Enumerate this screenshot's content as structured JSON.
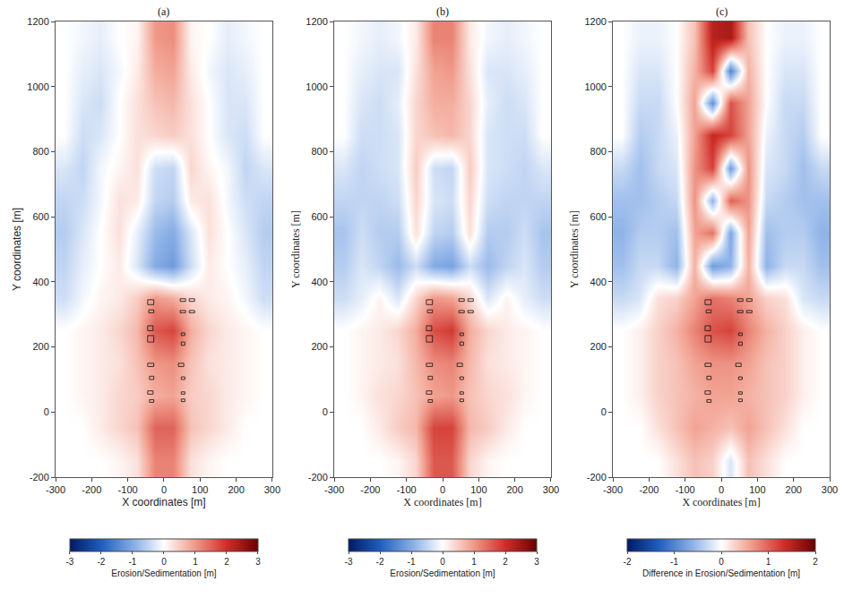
{
  "chart_data": [
    {
      "type": "heatmap",
      "title": "(a)",
      "xlabel": "X coordinates [m]",
      "ylabel": "Y coordinates [m]",
      "xlim": [
        -300,
        300
      ],
      "xticks": [
        -300,
        -200,
        -100,
        0,
        100,
        200,
        300
      ],
      "ylim": [
        -200,
        1200
      ],
      "yticks": [
        -200,
        0,
        200,
        400,
        600,
        800,
        1000,
        1200
      ],
      "x": [
        -275,
        -225,
        -175,
        -125,
        -75,
        -25,
        25,
        75,
        125,
        175,
        225,
        275
      ],
      "y": [
        -150,
        -50,
        50,
        150,
        250,
        350,
        450,
        550,
        650,
        750,
        850,
        950,
        1050,
        1150
      ],
      "z": [
        [
          0,
          0,
          0,
          0.1,
          0.3,
          1.2,
          1.2,
          0.3,
          0.1,
          0,
          0,
          0
        ],
        [
          0,
          0,
          0.2,
          0.4,
          0.6,
          1.5,
          1.5,
          0.6,
          0.4,
          0.2,
          0,
          0
        ],
        [
          0,
          0.1,
          0.2,
          0.4,
          0.5,
          0.8,
          0.9,
          0.5,
          0.4,
          0.2,
          0.1,
          0
        ],
        [
          0,
          0.1,
          0.2,
          0.3,
          0.6,
          1.0,
          1.1,
          0.6,
          0.3,
          0.2,
          0.1,
          0
        ],
        [
          0,
          0.1,
          0.2,
          0.4,
          0.7,
          1.6,
          1.8,
          0.8,
          0.4,
          0.2,
          0.1,
          0
        ],
        [
          -0.4,
          -0.1,
          0.1,
          0.2,
          0.5,
          1.0,
          0.8,
          0.4,
          0.2,
          0.1,
          -0.1,
          -0.4
        ],
        [
          -0.5,
          -0.2,
          0,
          0.2,
          -0.3,
          -1.0,
          -1.2,
          -0.4,
          0.2,
          0,
          -0.2,
          -0.5
        ],
        [
          -0.6,
          -0.3,
          0,
          0.3,
          -0.2,
          -0.8,
          -1.0,
          -0.3,
          0.3,
          0,
          -0.3,
          -0.6
        ],
        [
          -0.5,
          -0.4,
          -0.1,
          0.3,
          0.2,
          -0.5,
          -0.6,
          0.2,
          0.3,
          -0.1,
          -0.4,
          -0.5
        ],
        [
          -0.3,
          -0.5,
          -0.1,
          0.1,
          0.3,
          -0.4,
          -0.5,
          0.4,
          0.1,
          -0.1,
          -0.5,
          -0.3
        ],
        [
          0,
          -0.4,
          -0.3,
          0,
          0.3,
          0.4,
          0.5,
          0.3,
          0,
          -0.3,
          -0.4,
          0
        ],
        [
          0,
          -0.3,
          -0.4,
          0,
          0.3,
          0.6,
          0.7,
          0.3,
          0,
          -0.3,
          -0.3,
          0
        ],
        [
          0,
          -0.2,
          -0.3,
          -0.1,
          0.2,
          0.8,
          0.9,
          0.2,
          -0.1,
          -0.3,
          -0.2,
          0
        ],
        [
          0,
          -0.1,
          -0.2,
          0,
          0.1,
          1.0,
          1.1,
          0.1,
          0,
          -0.2,
          -0.1,
          0
        ]
      ],
      "colorbar": {
        "range": [
          -3,
          3
        ],
        "ticks": [
          -3,
          -2,
          -1,
          0,
          1,
          2,
          3
        ],
        "label": "Erosion/Sedimentation [m]"
      },
      "structures": [
        [
          -45,
          330,
          -28,
          345
        ],
        [
          -42,
          305,
          -28,
          314
        ],
        [
          -45,
          250,
          -30,
          265
        ],
        [
          -45,
          215,
          -28,
          235
        ],
        [
          -45,
          140,
          -28,
          150
        ],
        [
          -40,
          100,
          -28,
          110
        ],
        [
          -45,
          55,
          -30,
          65
        ],
        [
          -40,
          30,
          -28,
          38
        ],
        [
          45,
          340,
          60,
          348
        ],
        [
          70,
          340,
          85,
          348
        ],
        [
          45,
          305,
          60,
          312
        ],
        [
          70,
          305,
          85,
          312
        ],
        [
          48,
          235,
          58,
          243
        ],
        [
          48,
          205,
          58,
          215
        ],
        [
          40,
          140,
          55,
          150
        ],
        [
          48,
          100,
          58,
          108
        ],
        [
          48,
          55,
          58,
          62
        ],
        [
          48,
          32,
          58,
          40
        ]
      ]
    },
    {
      "type": "heatmap",
      "title": "(b)",
      "xlabel": "X coordinates [m]",
      "ylabel": "Y coordinates [m]",
      "xlim": [
        -300,
        300
      ],
      "xticks": [
        -300,
        -200,
        -100,
        0,
        100,
        200,
        300
      ],
      "ylim": [
        -200,
        1200
      ],
      "yticks": [
        -200,
        0,
        200,
        400,
        600,
        800,
        1000,
        1200
      ],
      "x": [
        -275,
        -225,
        -175,
        -125,
        -75,
        -25,
        25,
        75,
        125,
        175,
        225,
        275
      ],
      "y": [
        -150,
        -50,
        50,
        150,
        250,
        350,
        450,
        550,
        650,
        750,
        850,
        950,
        1050,
        1150
      ],
      "z": [
        [
          0,
          0,
          0,
          0.1,
          0.4,
          1.6,
          1.6,
          0.4,
          0.1,
          0,
          0,
          0
        ],
        [
          0,
          0,
          0.2,
          0.5,
          0.7,
          1.8,
          1.8,
          0.7,
          0.5,
          0.2,
          0,
          0
        ],
        [
          0,
          0.1,
          0.3,
          0.4,
          0.6,
          0.9,
          1.0,
          0.6,
          0.4,
          0.3,
          0.1,
          0
        ],
        [
          0,
          0.1,
          0.2,
          0.3,
          0.7,
          1.1,
          1.2,
          0.7,
          0.3,
          0.2,
          0.1,
          0
        ],
        [
          0,
          0.1,
          0.2,
          0.4,
          0.8,
          1.7,
          1.9,
          0.8,
          0.4,
          0.2,
          0.1,
          0
        ],
        [
          -0.4,
          -0.2,
          0.1,
          -0.3,
          0.4,
          1.0,
          0.9,
          0.4,
          -0.3,
          0.1,
          -0.2,
          -0.4
        ],
        [
          -0.6,
          -0.3,
          -0.5,
          -0.8,
          -0.4,
          -1.0,
          -1.1,
          -0.4,
          -0.8,
          -0.5,
          -0.3,
          -0.6
        ],
        [
          -0.7,
          -0.4,
          -0.6,
          -0.6,
          0.3,
          -0.5,
          -0.6,
          0.3,
          -0.6,
          -0.6,
          -0.4,
          -0.7
        ],
        [
          -0.5,
          -0.5,
          -0.5,
          -0.4,
          0.4,
          -0.3,
          -0.4,
          0.4,
          -0.4,
          -0.5,
          -0.5,
          -0.5
        ],
        [
          -0.3,
          -0.5,
          -0.4,
          -0.3,
          0.5,
          -0.4,
          -0.5,
          0.5,
          -0.3,
          -0.4,
          -0.5,
          -0.3
        ],
        [
          0,
          -0.4,
          -0.4,
          -0.3,
          0.4,
          0.6,
          0.7,
          0.4,
          -0.3,
          -0.4,
          -0.4,
          0
        ],
        [
          0,
          -0.3,
          -0.4,
          -0.2,
          0.4,
          0.8,
          0.8,
          0.4,
          -0.2,
          -0.4,
          -0.3,
          0
        ],
        [
          0,
          -0.2,
          -0.3,
          -0.3,
          0.3,
          0.9,
          1.0,
          0.3,
          -0.3,
          -0.3,
          -0.2,
          0
        ],
        [
          0,
          -0.1,
          -0.2,
          -0.1,
          0.2,
          1.2,
          1.2,
          0.2,
          -0.1,
          -0.2,
          -0.1,
          0
        ]
      ],
      "colorbar": {
        "range": [
          -3,
          3
        ],
        "ticks": [
          -3,
          -2,
          -1,
          0,
          1,
          2,
          3
        ],
        "label": "Erosion/Sedimentation [m]"
      },
      "structures": [
        [
          -45,
          330,
          -28,
          345
        ],
        [
          -42,
          305,
          -28,
          314
        ],
        [
          -45,
          250,
          -30,
          265
        ],
        [
          -45,
          215,
          -28,
          235
        ],
        [
          -45,
          140,
          -28,
          150
        ],
        [
          -40,
          100,
          -28,
          110
        ],
        [
          -45,
          55,
          -30,
          65
        ],
        [
          -40,
          30,
          -28,
          38
        ],
        [
          45,
          340,
          60,
          348
        ],
        [
          70,
          340,
          85,
          348
        ],
        [
          45,
          305,
          60,
          312
        ],
        [
          70,
          305,
          85,
          312
        ],
        [
          48,
          235,
          58,
          243
        ],
        [
          48,
          205,
          58,
          215
        ],
        [
          40,
          140,
          55,
          150
        ],
        [
          48,
          100,
          58,
          108
        ],
        [
          48,
          55,
          58,
          62
        ],
        [
          48,
          32,
          58,
          40
        ]
      ]
    },
    {
      "type": "heatmap",
      "title": "(c)",
      "xlabel": "X coordinates [m]",
      "ylabel": "Y coordinates [m]",
      "xlim": [
        -300,
        300
      ],
      "xticks": [
        -300,
        -200,
        -100,
        0,
        100,
        200,
        300
      ],
      "ylim": [
        -200,
        1200
      ],
      "yticks": [
        -200,
        0,
        200,
        400,
        600,
        800,
        1000,
        1200
      ],
      "x": [
        -275,
        -225,
        -175,
        -125,
        -75,
        -25,
        25,
        75,
        125,
        175,
        225,
        275
      ],
      "y": [
        -150,
        -50,
        50,
        150,
        250,
        350,
        450,
        550,
        650,
        750,
        850,
        950,
        1050,
        1150
      ],
      "z": [
        [
          0,
          0,
          0,
          0.2,
          0.4,
          0.3,
          -0.2,
          0.4,
          0.2,
          0,
          0,
          0
        ],
        [
          0,
          0,
          0.2,
          0.4,
          0.6,
          0.5,
          0.4,
          0.6,
          0.4,
          0.2,
          0,
          0
        ],
        [
          0,
          0.1,
          0.3,
          0.4,
          0.5,
          0.6,
          0.6,
          0.5,
          0.4,
          0.3,
          0.1,
          0
        ],
        [
          0,
          0.1,
          0.3,
          0.4,
          0.6,
          0.7,
          0.7,
          0.6,
          0.4,
          0.3,
          0.1,
          0
        ],
        [
          0,
          0.1,
          0.3,
          0.5,
          0.8,
          1.1,
          1.2,
          0.8,
          0.5,
          0.3,
          0.1,
          0
        ],
        [
          -0.3,
          -0.2,
          0.2,
          0.3,
          0.6,
          0.9,
          0.8,
          0.6,
          0.3,
          0.2,
          -0.2,
          -0.3
        ],
        [
          -0.5,
          -0.3,
          -0.3,
          -0.6,
          0.5,
          -0.8,
          -0.6,
          0.5,
          -0.6,
          -0.3,
          -0.3,
          -0.5
        ],
        [
          -0.6,
          -0.4,
          -0.4,
          -0.5,
          0.6,
          0.9,
          -0.7,
          0.6,
          -0.5,
          -0.4,
          -0.4,
          -0.6
        ],
        [
          -0.5,
          -0.5,
          -0.4,
          -0.3,
          0.7,
          -0.6,
          1.0,
          0.7,
          -0.3,
          -0.4,
          -0.5,
          -0.5
        ],
        [
          -0.3,
          -0.5,
          -0.3,
          -0.2,
          0.7,
          1.2,
          -0.8,
          0.7,
          -0.2,
          -0.3,
          -0.5,
          -0.3
        ],
        [
          0,
          -0.4,
          -0.3,
          -0.1,
          0.6,
          1.4,
          1.2,
          0.6,
          -0.1,
          -0.3,
          -0.4,
          0
        ],
        [
          0,
          -0.3,
          -0.3,
          0,
          0.6,
          -0.9,
          1.1,
          0.6,
          0,
          -0.3,
          -0.3,
          0
        ],
        [
          0,
          -0.2,
          -0.2,
          0,
          0.5,
          1.2,
          -1.0,
          0.5,
          0,
          -0.2,
          -0.2,
          0
        ],
        [
          0,
          -0.1,
          -0.1,
          0,
          0.4,
          1.5,
          1.6,
          0.4,
          0,
          -0.1,
          -0.1,
          0
        ]
      ],
      "colorbar": {
        "range": [
          -2,
          2
        ],
        "ticks": [
          -2,
          -1,
          0,
          1,
          2
        ],
        "label": "Difference in Erosion/Sedimentation [m]"
      },
      "structures": [
        [
          -45,
          330,
          -28,
          345
        ],
        [
          -42,
          305,
          -28,
          314
        ],
        [
          -45,
          250,
          -30,
          265
        ],
        [
          -45,
          215,
          -28,
          235
        ],
        [
          -45,
          140,
          -28,
          150
        ],
        [
          -40,
          100,
          -28,
          110
        ],
        [
          -45,
          55,
          -30,
          65
        ],
        [
          -40,
          30,
          -28,
          38
        ],
        [
          45,
          340,
          60,
          348
        ],
        [
          70,
          340,
          85,
          348
        ],
        [
          45,
          305,
          60,
          312
        ],
        [
          70,
          305,
          85,
          312
        ],
        [
          48,
          235,
          58,
          243
        ],
        [
          48,
          205,
          58,
          215
        ],
        [
          40,
          140,
          55,
          150
        ],
        [
          48,
          100,
          58,
          108
        ],
        [
          48,
          55,
          58,
          62
        ],
        [
          48,
          32,
          58,
          40
        ]
      ]
    }
  ]
}
